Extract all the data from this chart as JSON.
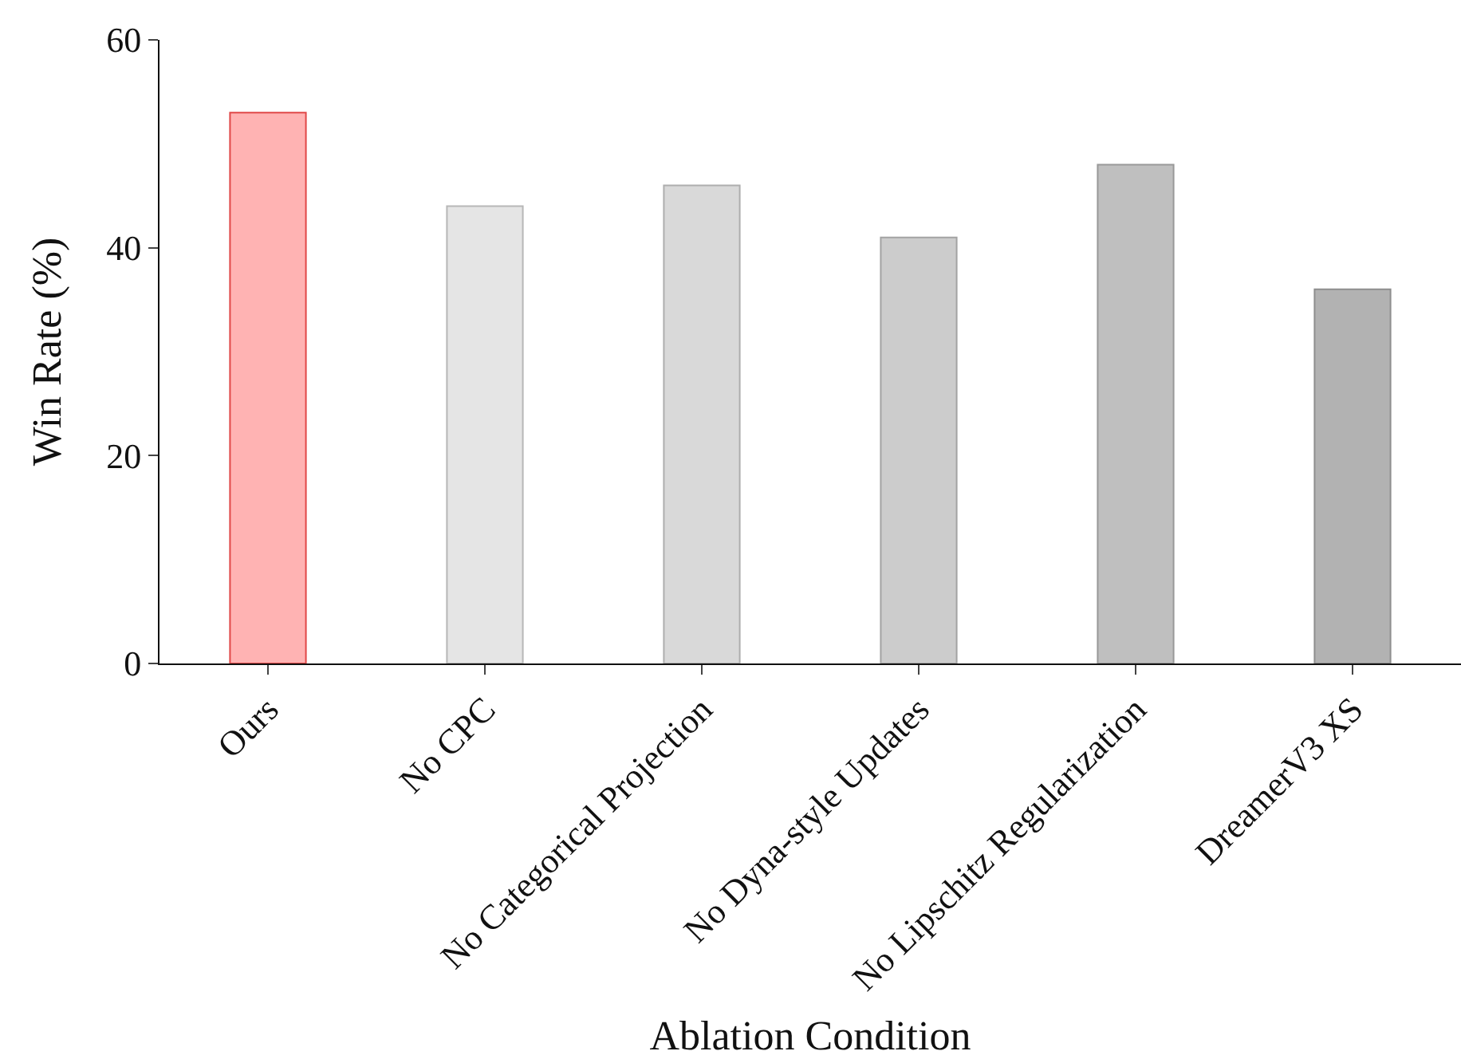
{
  "chart_data": {
    "type": "bar",
    "xlabel": "Ablation Condition",
    "ylabel": "Win Rate (%)",
    "categories": [
      "Ours",
      "No CPC",
      "No Categorical Projection",
      "No Dyna-style Updates",
      "No Lipschitz Regularization",
      "DreamerV3 XS"
    ],
    "values": [
      53,
      44,
      46,
      41,
      48,
      36
    ],
    "colors": [
      "#ffb3b3",
      "#e5e5e5",
      "#d9d9d9",
      "#cccccc",
      "#bfbfbf",
      "#b2b2b2"
    ],
    "ylim": [
      0,
      60
    ],
    "yticks": [
      0,
      20,
      40,
      60
    ],
    "grid": false
  }
}
